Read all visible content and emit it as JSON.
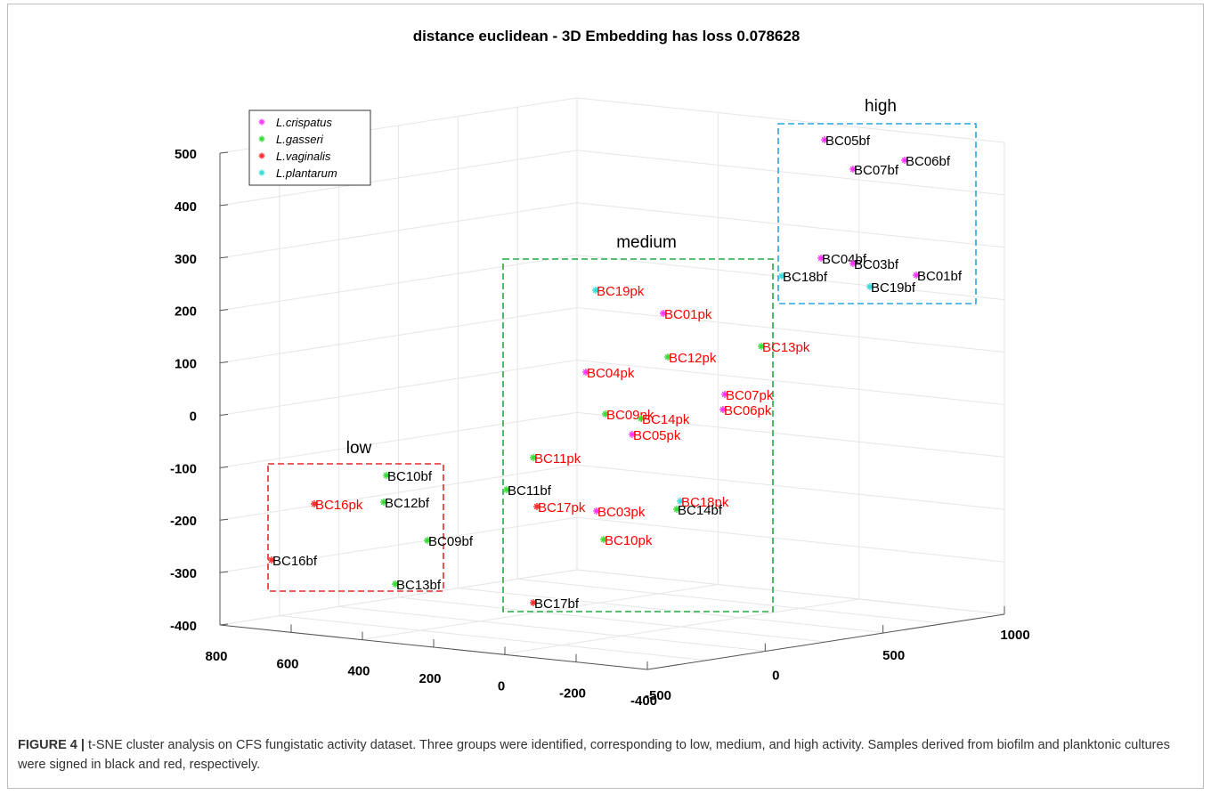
{
  "chart_data": {
    "type": "scatter",
    "projection": "3d",
    "title": "distance euclidean - 3D Embedding has loss 0.078628",
    "axes": {
      "x": {
        "ticks": [
          "800",
          "600",
          "400",
          "200",
          "0",
          "-200",
          "-400"
        ]
      },
      "y": {
        "ticks": [
          "-500",
          "0",
          "500",
          "1000"
        ]
      },
      "z": {
        "ticks": [
          "500",
          "400",
          "300",
          "200",
          "100",
          "0",
          "-100",
          "-200",
          "-300",
          "-400"
        ]
      }
    },
    "grid": true,
    "legend": {
      "placement": "top-left",
      "entries": [
        {
          "name": "L.crispatus",
          "color": "#ff33ff"
        },
        {
          "name": "L.gasseri",
          "color": "#33dd33"
        },
        {
          "name": "L.vaginalis",
          "color": "#ff2a2a"
        },
        {
          "name": "L.plantarum",
          "color": "#33dddd"
        }
      ]
    },
    "label_colors": {
      "biofilm": "#000000",
      "planktonic": "#ff0000"
    },
    "groups": [
      {
        "name": "low",
        "color": "#e8282a"
      },
      {
        "name": "medium",
        "color": "#22aa44"
      },
      {
        "name": "high",
        "color": "#2aa6e0"
      }
    ],
    "points": [
      {
        "label": "BC05bf",
        "species": "L.crispatus",
        "culture": "biofilm"
      },
      {
        "label": "BC06bf",
        "species": "L.crispatus",
        "culture": "biofilm"
      },
      {
        "label": "BC07bf",
        "species": "L.crispatus",
        "culture": "biofilm"
      },
      {
        "label": "BC04bf",
        "species": "L.crispatus",
        "culture": "biofilm"
      },
      {
        "label": "BC03bf",
        "species": "L.crispatus",
        "culture": "biofilm"
      },
      {
        "label": "BC01bf",
        "species": "L.crispatus",
        "culture": "biofilm"
      },
      {
        "label": "BC18bf",
        "species": "L.plantarum",
        "culture": "biofilm"
      },
      {
        "label": "BC19bf",
        "species": "L.plantarum",
        "culture": "biofilm"
      },
      {
        "label": "BC19pk",
        "species": "L.plantarum",
        "culture": "planktonic"
      },
      {
        "label": "BC01pk",
        "species": "L.crispatus",
        "culture": "planktonic"
      },
      {
        "label": "BC13pk",
        "species": "L.gasseri",
        "culture": "planktonic"
      },
      {
        "label": "BC12pk",
        "species": "L.gasseri",
        "culture": "planktonic"
      },
      {
        "label": "BC04pk",
        "species": "L.crispatus",
        "culture": "planktonic"
      },
      {
        "label": "BC07pk",
        "species": "L.crispatus",
        "culture": "planktonic"
      },
      {
        "label": "BC06pk",
        "species": "L.crispatus",
        "culture": "planktonic"
      },
      {
        "label": "BC09pk",
        "species": "L.gasseri",
        "culture": "planktonic"
      },
      {
        "label": "BC14pk",
        "species": "L.gasseri",
        "culture": "planktonic"
      },
      {
        "label": "BC05pk",
        "species": "L.crispatus",
        "culture": "planktonic"
      },
      {
        "label": "BC11pk",
        "species": "L.gasseri",
        "culture": "planktonic"
      },
      {
        "label": "BC11bf",
        "species": "L.gasseri",
        "culture": "biofilm"
      },
      {
        "label": "BC17pk",
        "species": "L.vaginalis",
        "culture": "planktonic"
      },
      {
        "label": "BC03pk",
        "species": "L.crispatus",
        "culture": "planktonic"
      },
      {
        "label": "BC18pk",
        "species": "L.plantarum",
        "culture": "planktonic"
      },
      {
        "label": "BC14bf",
        "species": "L.gasseri",
        "culture": "biofilm"
      },
      {
        "label": "BC10pk",
        "species": "L.gasseri",
        "culture": "planktonic"
      },
      {
        "label": "BC17bf",
        "species": "L.vaginalis",
        "culture": "biofilm"
      },
      {
        "label": "BC10bf",
        "species": "L.gasseri",
        "culture": "biofilm"
      },
      {
        "label": "BC16pk",
        "species": "L.vaginalis",
        "culture": "planktonic"
      },
      {
        "label": "BC12bf",
        "species": "L.gasseri",
        "culture": "biofilm"
      },
      {
        "label": "BC09bf",
        "species": "L.gasseri",
        "culture": "biofilm"
      },
      {
        "label": "BC16bf",
        "species": "L.vaginalis",
        "culture": "biofilm"
      },
      {
        "label": "BC13bf",
        "species": "L.gasseri",
        "culture": "biofilm"
      }
    ]
  },
  "caption": {
    "label": "FIGURE 4 |",
    "text": "t-SNE cluster analysis on CFS fungistatic activity dataset. Three groups were identified, corresponding to low, medium, and high activity. Samples derived from biofilm and planktonic cultures were signed in black and red, respectively."
  }
}
